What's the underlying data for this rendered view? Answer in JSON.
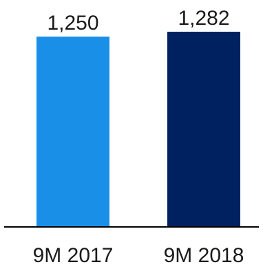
{
  "chart_data": {
    "type": "bar",
    "categories": [
      "9M 2017",
      "9M 2018"
    ],
    "values": [
      1250,
      1282
    ],
    "value_labels": [
      "1,250",
      "1,282"
    ],
    "colors": [
      "#1a8fe8",
      "#00215f"
    ],
    "axis_color": "#000000",
    "ylim": [
      0,
      1282
    ],
    "grid": false,
    "legend": "none"
  }
}
